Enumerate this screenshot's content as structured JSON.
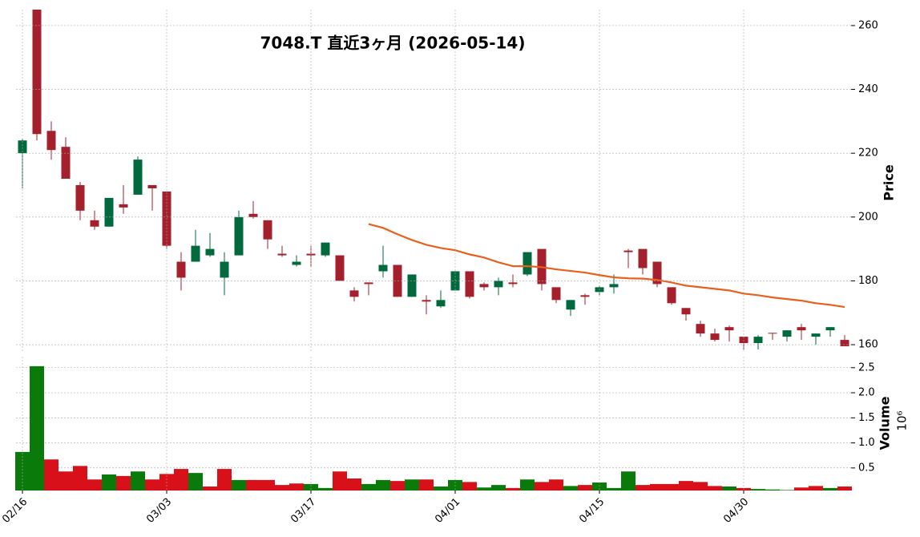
{
  "chart_data": [
    {
      "type": "candlestick",
      "title": "7048.T  直近3ヶ月  (2026-05-14)",
      "ylabel": "Price",
      "up_color": "#006a3c",
      "down_color": "#a3202c",
      "grid": true,
      "open": [
        220,
        268,
        227,
        222,
        210,
        199,
        197,
        204,
        207,
        210,
        208,
        186,
        186,
        188,
        181,
        188,
        201,
        199,
        188.5,
        185,
        188.5,
        188,
        188,
        177,
        179.5,
        183,
        185,
        175,
        174,
        172,
        177,
        183,
        179,
        178,
        179.5,
        182,
        190,
        178,
        171,
        175.5,
        176.5,
        178,
        189.5,
        190,
        186,
        178,
        171.5,
        166.5,
        163.5,
        165.5,
        162.5,
        160.5,
        163.7,
        162.5,
        165.5,
        162.5,
        164.5,
        161.5
      ],
      "high": [
        224.5,
        268,
        230,
        225,
        211,
        202,
        206,
        210,
        219,
        210,
        208,
        189,
        196,
        195,
        189,
        202,
        205,
        199,
        191,
        188,
        191,
        192,
        188,
        178,
        179.5,
        191,
        185,
        182,
        175.5,
        177,
        183,
        183,
        179.5,
        181,
        182,
        189,
        190,
        178,
        174,
        176,
        178.5,
        182,
        190,
        190,
        186,
        178,
        171.5,
        167.5,
        165,
        166,
        162.5,
        163,
        163.7,
        164.5,
        166.5,
        163.5,
        165.5,
        163
      ],
      "low": [
        209,
        224,
        218,
        212,
        199,
        196,
        197,
        201,
        207,
        202,
        190,
        177,
        186,
        187.5,
        175.5,
        188,
        199.5,
        190,
        187.5,
        184.5,
        184.5,
        187.5,
        180,
        173.5,
        175.5,
        181,
        175,
        175,
        169.5,
        171.5,
        177,
        174.5,
        177,
        175.5,
        178,
        181.5,
        177,
        173,
        169,
        172.5,
        175.5,
        176,
        184,
        182,
        178,
        172.5,
        167.5,
        162.5,
        161,
        161,
        158.5,
        158.5,
        161.5,
        161,
        161.5,
        160,
        162.5,
        159.5
      ],
      "close": [
        224,
        226,
        221,
        212,
        202,
        197,
        206,
        203,
        218,
        209,
        191,
        181,
        191,
        190,
        186,
        200,
        200,
        193,
        188,
        186,
        188,
        192,
        180,
        175,
        179,
        185,
        175,
        182,
        173.5,
        174,
        183,
        175,
        178,
        180,
        179,
        189,
        179,
        174,
        174,
        175,
        178,
        179,
        189,
        184,
        179,
        173,
        169.5,
        163.5,
        161.5,
        164.5,
        160.5,
        162.5,
        163.5,
        164.5,
        164.5,
        163.5,
        165.5,
        159.5
      ],
      "lines": [
        {
          "color": "#e8601c",
          "values": [
            null,
            null,
            null,
            null,
            null,
            null,
            null,
            null,
            null,
            null,
            null,
            null,
            null,
            null,
            null,
            null,
            null,
            null,
            null,
            null,
            null,
            null,
            null,
            null,
            197.8,
            196.6,
            194.6,
            192.8,
            191.3,
            190.3,
            189.6,
            188.3,
            187.3,
            185.8,
            184.6,
            184.6,
            184.3,
            183.6,
            183.1,
            182.6,
            181.8,
            181.1,
            180.8,
            180.7,
            180.3,
            179.5,
            178.5,
            178.0,
            177.5,
            177.0,
            176.0,
            175.5,
            174.8,
            174.3,
            173.8,
            173.0,
            172.5,
            171.8
          ]
        }
      ],
      "ylim": [
        157.5,
        265
      ],
      "yticks": [
        160,
        180,
        200,
        220,
        240,
        260
      ]
    },
    {
      "type": "bar",
      "ylabel": "Volume",
      "scale_label": "10⁶",
      "grid": true,
      "categories": [
        "02/16",
        null,
        null,
        null,
        null,
        null,
        null,
        null,
        null,
        null,
        "03/03",
        null,
        null,
        null,
        null,
        null,
        null,
        null,
        null,
        null,
        "03/17",
        null,
        null,
        null,
        null,
        null,
        null,
        null,
        null,
        null,
        "04/01",
        null,
        null,
        null,
        null,
        null,
        null,
        null,
        null,
        null,
        "04/15",
        null,
        null,
        null,
        null,
        null,
        null,
        null,
        null,
        null,
        "04/30",
        null,
        null,
        null,
        null,
        null,
        null,
        null
      ],
      "values": [
        0.82,
        2.53,
        0.67,
        0.43,
        0.54,
        0.27,
        0.37,
        0.34,
        0.43,
        0.27,
        0.38,
        0.48,
        0.4,
        0.13,
        0.48,
        0.26,
        0.26,
        0.26,
        0.16,
        0.19,
        0.18,
        0.1,
        0.43,
        0.29,
        0.18,
        0.26,
        0.24,
        0.27,
        0.27,
        0.13,
        0.26,
        0.22,
        0.11,
        0.16,
        0.1,
        0.27,
        0.22,
        0.27,
        0.14,
        0.16,
        0.21,
        0.1,
        0.43,
        0.16,
        0.18,
        0.18,
        0.24,
        0.22,
        0.14,
        0.13,
        0.1,
        0.08,
        0.07,
        0.06,
        0.11,
        0.14,
        0.1,
        0.13
      ],
      "colors": [
        "#0a7a0a",
        "#0a7a0a",
        "#d7101a",
        "#d7101a",
        "#d7101a",
        "#d7101a",
        "#0a7a0a",
        "#d7101a",
        "#0a7a0a",
        "#d7101a",
        "#d7101a",
        "#d7101a",
        "#0a7a0a",
        "#d7101a",
        "#d7101a",
        "#0a7a0a",
        "#d7101a",
        "#d7101a",
        "#d7101a",
        "#d7101a",
        "#0a7a0a",
        "#0a7a0a",
        "#d7101a",
        "#d7101a",
        "#0a7a0a",
        "#0a7a0a",
        "#d7101a",
        "#0a7a0a",
        "#d7101a",
        "#0a7a0a",
        "#0a7a0a",
        "#d7101a",
        "#0a7a0a",
        "#0a7a0a",
        "#d7101a",
        "#0a7a0a",
        "#d7101a",
        "#d7101a",
        "#0a7a0a",
        "#d7101a",
        "#0a7a0a",
        "#0a7a0a",
        "#0a7a0a",
        "#d7101a",
        "#d7101a",
        "#d7101a",
        "#d7101a",
        "#d7101a",
        "#d7101a",
        "#0a7a0a",
        "#d7101a",
        "#0a7a0a",
        "#0a7a0a",
        "#0a7a0a",
        "#d7101a",
        "#d7101a",
        "#0a7a0a",
        "#d7101a"
      ],
      "ylim": [
        0.05,
        2.72
      ],
      "yticks": [
        0.5,
        {
          "value": 1,
          "label": "1.0"
        },
        1.5,
        {
          "value": 2,
          "label": "2.0"
        },
        2.5
      ]
    }
  ]
}
